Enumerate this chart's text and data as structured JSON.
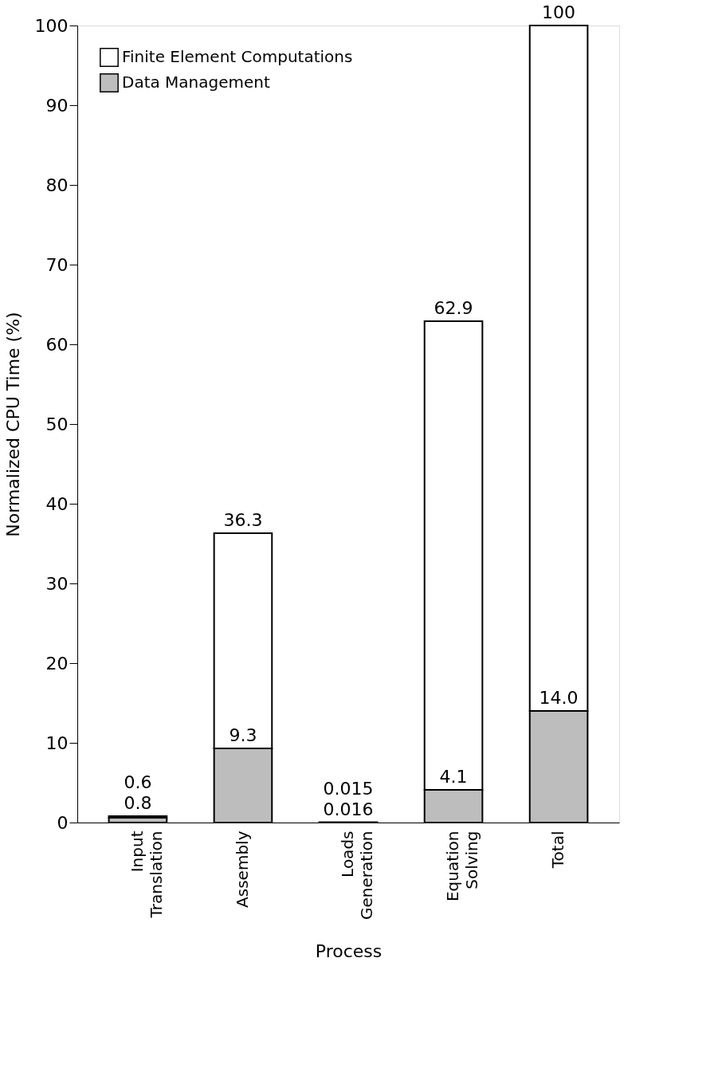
{
  "chart_data": {
    "type": "bar",
    "stacked": true,
    "xlabel": "Process",
    "ylabel": "Normalized CPU Time (%)",
    "categories": [
      "Input Translation",
      "Assembly",
      "Loads Generation",
      "Equation Solving",
      "Total"
    ],
    "series": [
      {
        "name": "Data Management",
        "color": "#bdbdbd",
        "values": [
          0.6,
          9.3,
          0.015,
          4.1,
          14.0
        ],
        "value_labels": [
          "0.6",
          "9.3",
          "0.015",
          "4.1",
          "14.0"
        ]
      },
      {
        "name": "Finite Element Computations",
        "color": "#ffffff",
        "values": [
          0.2,
          27.0,
          0.001,
          58.8,
          86.0
        ]
      }
    ],
    "totals": [
      "0.8",
      "36.3",
      "0.016",
      "62.9",
      "100"
    ],
    "ylim": [
      0,
      100
    ],
    "yticks": [
      0,
      10,
      20,
      30,
      40,
      50,
      60,
      70,
      80,
      90,
      100
    ],
    "grid": false,
    "legend": "top left"
  }
}
